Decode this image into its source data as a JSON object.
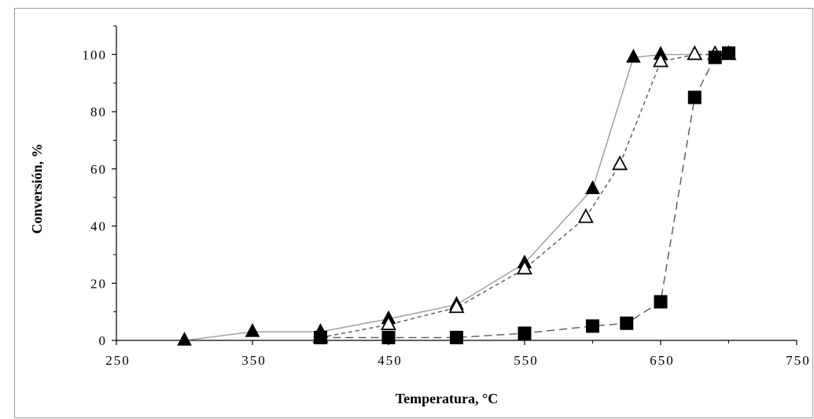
{
  "chart_data": {
    "type": "line",
    "title": "",
    "xlabel": "Temperatura,  °C",
    "ylabel": "Conversión,  %",
    "xlim": [
      250,
      750
    ],
    "ylim": [
      0,
      110
    ],
    "xticks": [
      250,
      350,
      450,
      550,
      650,
      750
    ],
    "yticks": [
      0,
      20,
      40,
      60,
      80,
      100
    ],
    "grid": false,
    "legend": "none",
    "series": [
      {
        "marker": "filled-triangle",
        "line": "solid",
        "color": "#9a9a9a",
        "x": [
          300,
          350,
          400,
          450,
          500,
          550,
          600,
          630,
          650,
          675
        ],
        "y": [
          0,
          3,
          3,
          7.5,
          12.5,
          27,
          53,
          99,
          100,
          100
        ]
      },
      {
        "marker": "open-triangle",
        "line": "dashed",
        "color": "#555555",
        "x": [
          400,
          450,
          500,
          550,
          595,
          620,
          650,
          675,
          690,
          700
        ],
        "y": [
          1,
          5.5,
          11.5,
          25,
          43,
          61.5,
          97.5,
          100,
          100,
          100
        ]
      },
      {
        "marker": "filled-square",
        "line": "long-dashed",
        "color": "#555555",
        "x": [
          400,
          450,
          500,
          550,
          600,
          625,
          650,
          675,
          690,
          700
        ],
        "y": [
          1,
          1,
          1,
          2.5,
          5,
          6,
          13.5,
          85,
          99,
          100.5
        ]
      }
    ]
  }
}
